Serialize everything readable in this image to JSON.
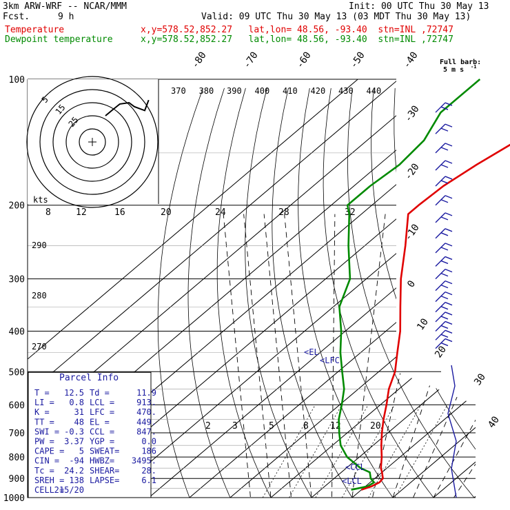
{
  "header": {
    "model": "3km ARW-WRF -- NCAR/MMM",
    "init": "Init: 00 UTC Thu 30 May 13",
    "fcst_label": "Fcst.",
    "fcst_hours": "9 h",
    "valid": "Valid: 09 UTC Thu 30 May 13 (03 MDT Thu 30 May 13)",
    "temp_label": "Temperature",
    "dew_label": "Dewpoint temperature",
    "location": "x,y=578.52,852.27   lat,lon= 48.56, -93.40  stn=INL ,72747"
  },
  "colors": {
    "temperature": "#e00000",
    "dewpoint": "#008a00",
    "hodograph": "#000000",
    "barbs": "#1a1aa0"
  },
  "barb_legend": {
    "title": "Full barb:",
    "value": "5 m s",
    "unit_exp": "-1"
  },
  "hodograph": {
    "unit_label": "kts",
    "ring_labels": [
      "5",
      "15",
      "25"
    ],
    "trace_u": [
      10,
      16,
      21,
      28,
      32,
      40,
      43
    ],
    "trace_v": [
      20,
      25,
      29,
      30,
      27,
      24,
      32
    ]
  },
  "parcel_info": {
    "title": "Parcel Info",
    "rows": [
      [
        "T  =",
        "12.5",
        "Td =",
        "11.9"
      ],
      [
        "LI =",
        "0.8",
        "LCL =",
        "913."
      ],
      [
        "K  =",
        "31",
        "LFC =",
        "470."
      ],
      [
        "TT =",
        "48",
        "EL  =",
        "449."
      ],
      [
        "SWI =",
        "-0.3",
        "CCL =",
        "847."
      ],
      [
        "PW =",
        "3.37",
        "YGP =",
        "0.0"
      ],
      [
        "CAPE =",
        "5",
        "SWEAT=",
        "186"
      ],
      [
        "CIN =",
        "-94",
        "HWBZ=",
        "3495."
      ],
      [
        "Tc =",
        "24.2",
        "SHEAR=",
        "28."
      ],
      [
        "SREH =",
        "138",
        "LAPSE=",
        "6.1"
      ],
      [
        "CELL =",
        "215/20",
        "",
        ""
      ]
    ]
  },
  "chart_data": {
    "type": "line",
    "diagram": "skew-T log-p",
    "pressure_levels": [
      "100",
      "200",
      "300",
      "400",
      "500",
      "600",
      "700",
      "800",
      "900",
      "1000"
    ],
    "isotherm_labels": [
      "-80",
      "-70",
      "-60",
      "-50",
      "-40",
      "-30",
      "-20",
      "-10",
      "0",
      "10",
      "20",
      "30",
      "40"
    ],
    "theta_labels": [
      "370",
      "380",
      "390",
      "400",
      "410",
      "420",
      "430",
      "440"
    ],
    "theta_e_labels": [
      "290",
      "280",
      "270"
    ],
    "mixing_ratio_labels_upper": [
      "8",
      "12",
      "16",
      "20",
      "24",
      "28",
      "32"
    ],
    "mixing_ratio_labels_lower": [
      "2",
      "3",
      "5",
      "8",
      "12",
      "20"
    ],
    "series": [
      {
        "name": "Temperature",
        "p": [
          958,
          940,
          920,
          900,
          870,
          850,
          800,
          750,
          700,
          650,
          600,
          550,
          500,
          450,
          400,
          350,
          300,
          250,
          210,
          200,
          180,
          160,
          140,
          120,
          100
        ],
        "t": [
          10.0,
          11.5,
          12.3,
          12.0,
          10.0,
          8.5,
          5.5,
          2.0,
          -1.5,
          -5.0,
          -8.5,
          -12.5,
          -16.0,
          -21.0,
          -26.5,
          -33.5,
          -41.5,
          -50.0,
          -58.5,
          -58.5,
          -58.0,
          -56.0,
          -53.0,
          -50.0,
          -45.0
        ]
      },
      {
        "name": "Dewpoint temperature",
        "p": [
          958,
          940,
          920,
          900,
          870,
          850,
          800,
          750,
          700,
          650,
          600,
          550,
          500,
          450,
          400,
          350,
          300,
          250,
          210,
          200,
          180,
          160,
          140,
          120,
          100
        ],
        "t": [
          7.5,
          10.5,
          11.0,
          9.0,
          7.0,
          3.5,
          -3.0,
          -8.0,
          -12.0,
          -16.0,
          -19.5,
          -23.5,
          -29.0,
          -35.0,
          -41.0,
          -48.5,
          -54.0,
          -64.0,
          -73.0,
          -76.0,
          -76.0,
          -75.0,
          -76.0,
          -80.0,
          -80.0
        ]
      }
    ],
    "annotations": [
      {
        "text": "EL",
        "p": 449
      },
      {
        "text": "LFC",
        "p": 470
      },
      {
        "text": "LCL",
        "p": 913
      },
      {
        "text": "CCL",
        "p": 847
      }
    ],
    "ylim": [
      1000,
      100
    ],
    "y_scale": "log"
  }
}
